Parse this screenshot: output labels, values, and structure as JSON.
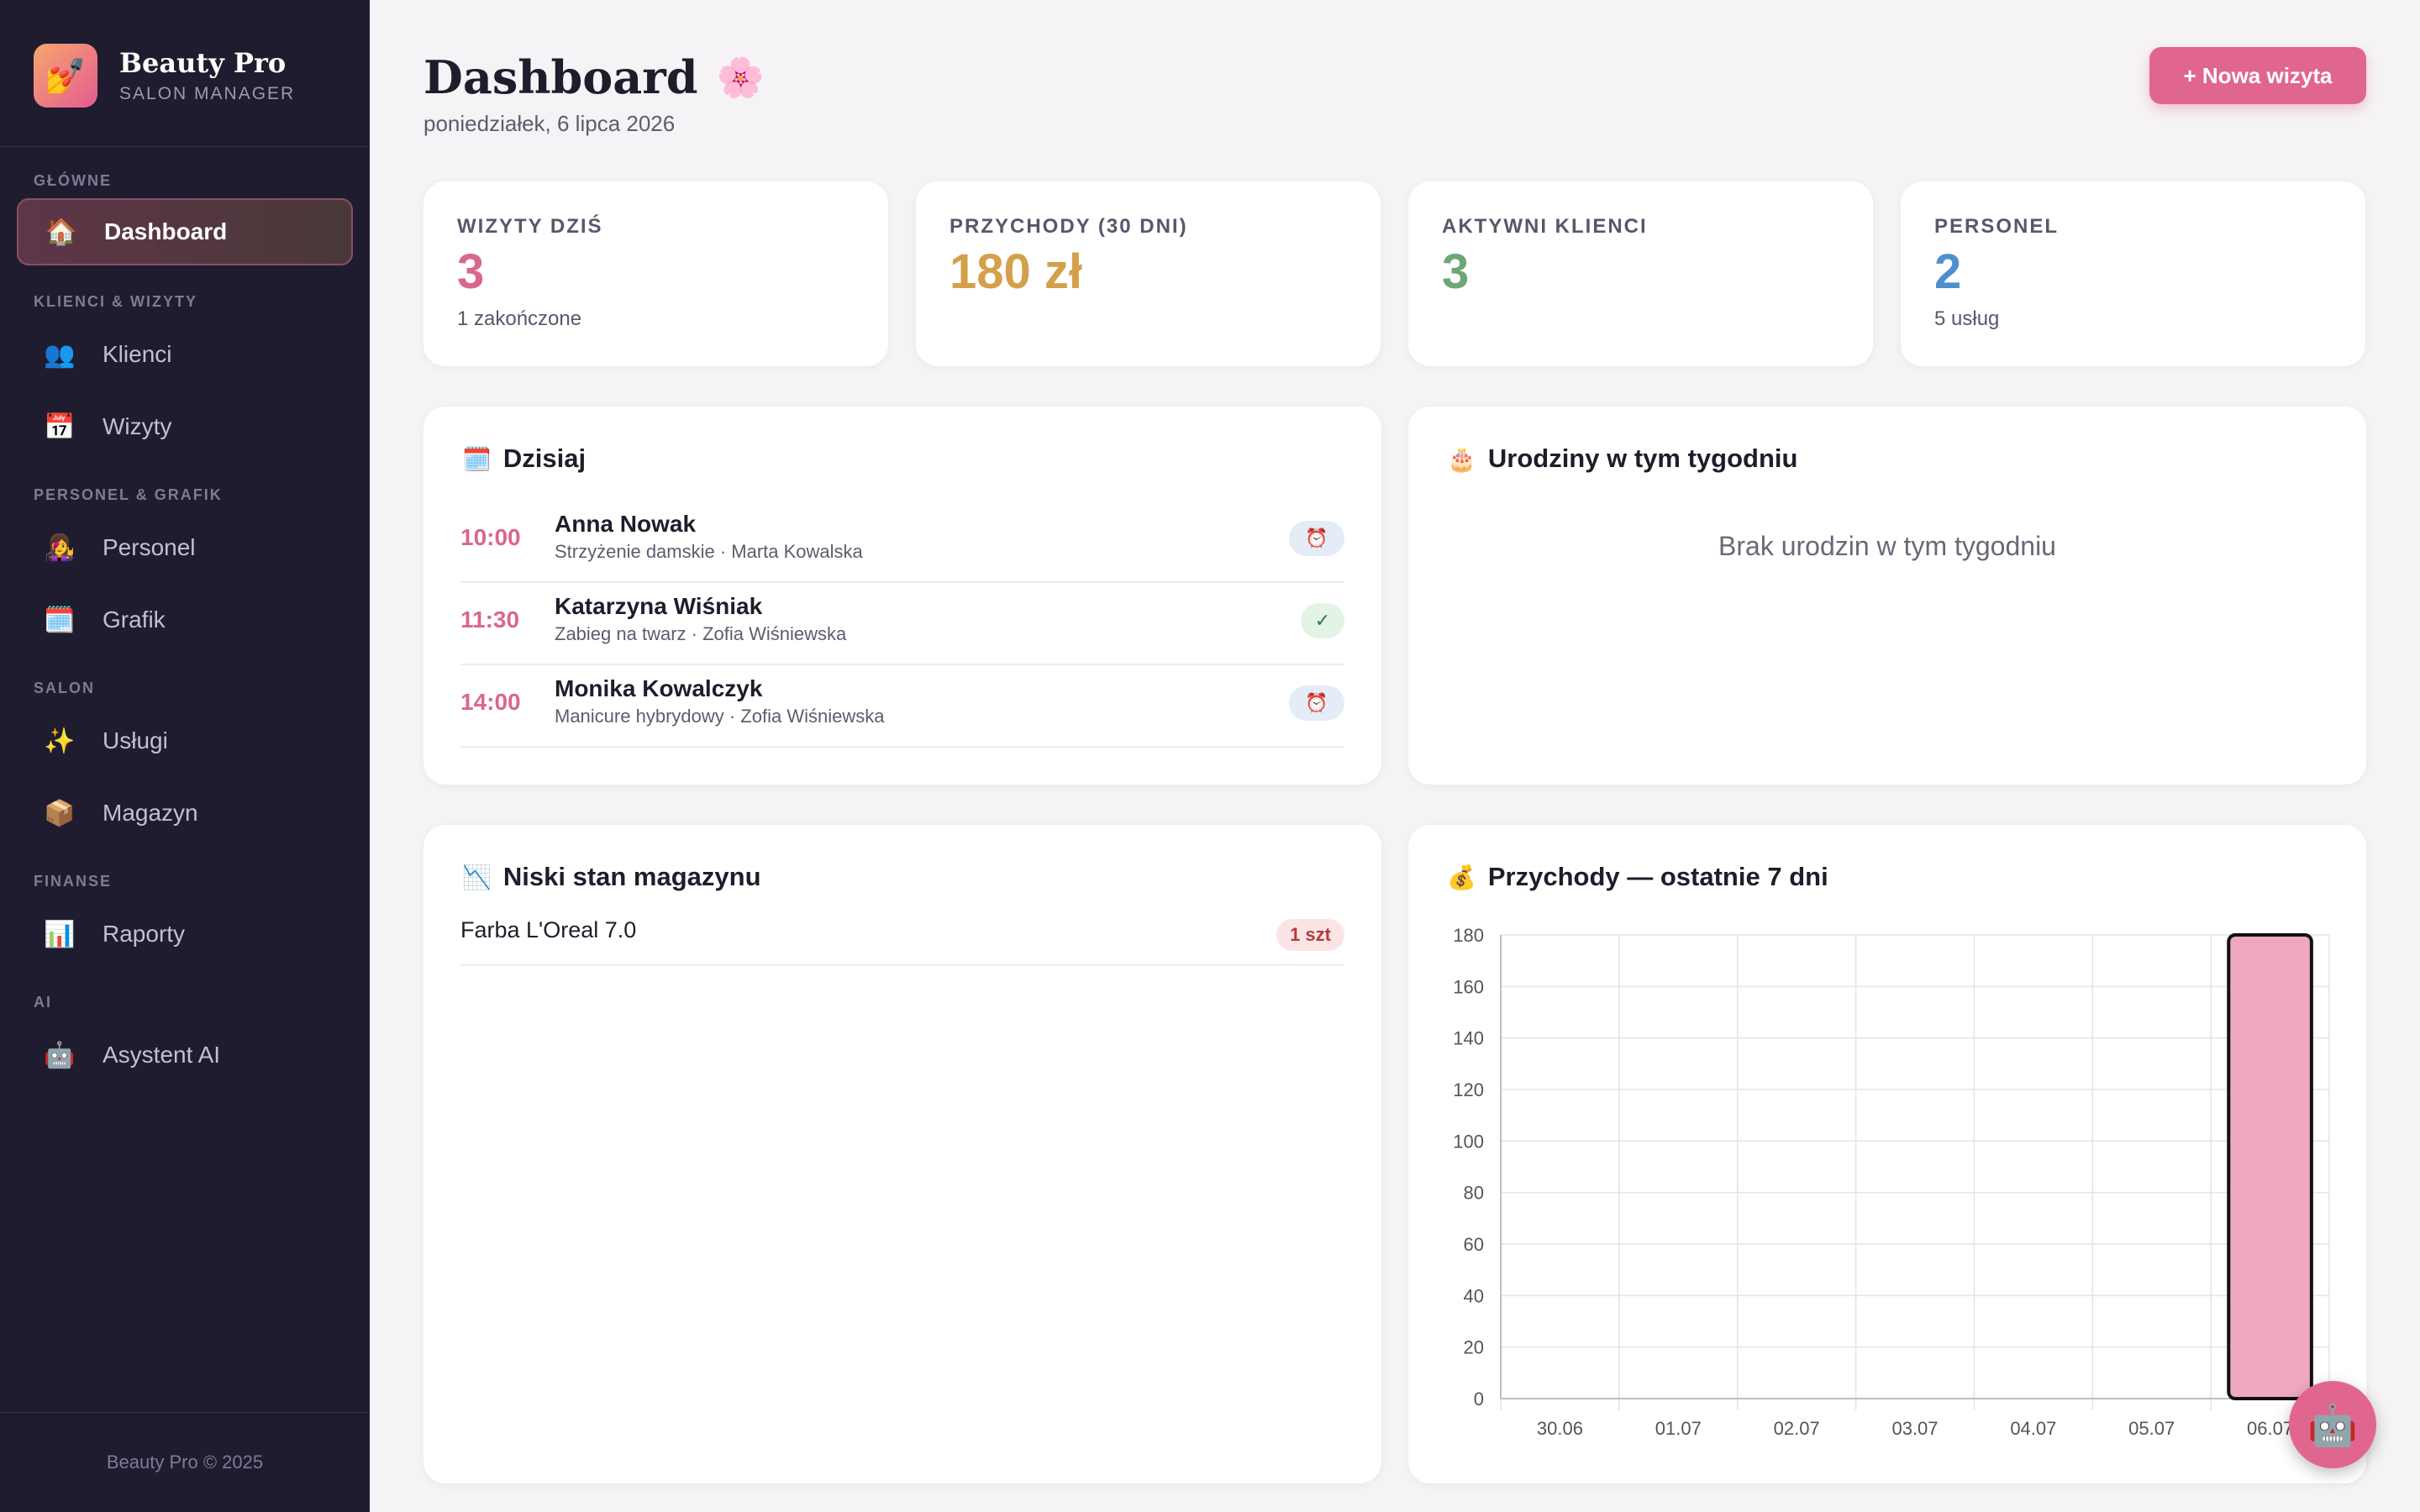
{
  "sidebar": {
    "brand_name": "Beauty Pro",
    "brand_sub": "SALON MANAGER",
    "brand_icon": "nail-polish-icon",
    "sections": {
      "main": "GŁÓWNE",
      "clients": "KLIENCI & WIZYTY",
      "staff": "PERSONEL & GRAFIK",
      "salon": "SALON",
      "finance": "FINANSE",
      "ai": "AI"
    },
    "items": {
      "dashboard": {
        "label": "Dashboard",
        "icon": "🏠"
      },
      "clients": {
        "label": "Klienci",
        "icon": "👥"
      },
      "visits": {
        "label": "Wizyty",
        "icon": "📅"
      },
      "staff": {
        "label": "Personel",
        "icon": "👩‍🎤"
      },
      "schedule": {
        "label": "Grafik",
        "icon": "🗓️"
      },
      "services": {
        "label": "Usługi",
        "icon": "✨"
      },
      "warehouse": {
        "label": "Magazyn",
        "icon": "📦"
      },
      "reports": {
        "label": "Raporty",
        "icon": "📊"
      },
      "assistant": {
        "label": "Asystent AI",
        "icon": "🤖"
      }
    },
    "footer": "Beauty Pro © 2025"
  },
  "header": {
    "title": "Dashboard",
    "title_icon": "🌸",
    "date": "poniedziałek, 6 lipca 2026",
    "new_visit_label": "+ Nowa wizyta"
  },
  "stats": [
    {
      "label": "WIZYTY DZIŚ",
      "value": "3",
      "sub": "1 zakończone",
      "color": "#d9678d"
    },
    {
      "label": "PRZYCHODY (30 DNI)",
      "value": "180 zł",
      "sub": "",
      "color": "#d4a04a"
    },
    {
      "label": "AKTYWNI KLIENCI",
      "value": "3",
      "sub": "",
      "color": "#6fa774"
    },
    {
      "label": "PERSONEL",
      "value": "2",
      "sub": "5 usług",
      "color": "#4f8fd0"
    }
  ],
  "today": {
    "title": "Dzisiaj",
    "icon": "🗓️",
    "appointments": [
      {
        "time": "10:00",
        "name": "Anna Nowak",
        "desc": "Strzyżenie damskie · Marta Kowalska",
        "status": "pending",
        "badge": "⏰"
      },
      {
        "time": "11:30",
        "name": "Katarzyna Wiśniak",
        "desc": "Zabieg na twarz · Zofia Wiśniewska",
        "status": "done",
        "badge": "✓"
      },
      {
        "time": "14:00",
        "name": "Monika Kowalczyk",
        "desc": "Manicure hybrydowy · Zofia Wiśniewska",
        "status": "pending",
        "badge": "⏰"
      }
    ]
  },
  "birthdays": {
    "title": "Urodziny w tym tygodniu",
    "icon": "🎂",
    "empty": "Brak urodzin w tym tygodniu"
  },
  "low_stock": {
    "title": "Niski stan magazynu",
    "icon": "📉",
    "items": [
      {
        "name": "Farba L'Oreal 7.0",
        "qty": "1 szt"
      }
    ]
  },
  "revenue": {
    "title": "Przychody — ostatnie 7 dni",
    "icon": "💰"
  },
  "chart_data": {
    "type": "bar",
    "categories": [
      "30.06",
      "01.07",
      "02.07",
      "03.07",
      "04.07",
      "05.07",
      "06.07"
    ],
    "values": [
      0,
      0,
      0,
      0,
      0,
      0,
      180
    ],
    "ylim": [
      0,
      180
    ],
    "yticks": [
      0,
      20,
      40,
      60,
      80,
      100,
      120,
      140,
      160,
      180
    ],
    "grid": true,
    "bar_color": "#f0a8c0",
    "bar_border": "#111111"
  },
  "fab_icon": "🤖"
}
